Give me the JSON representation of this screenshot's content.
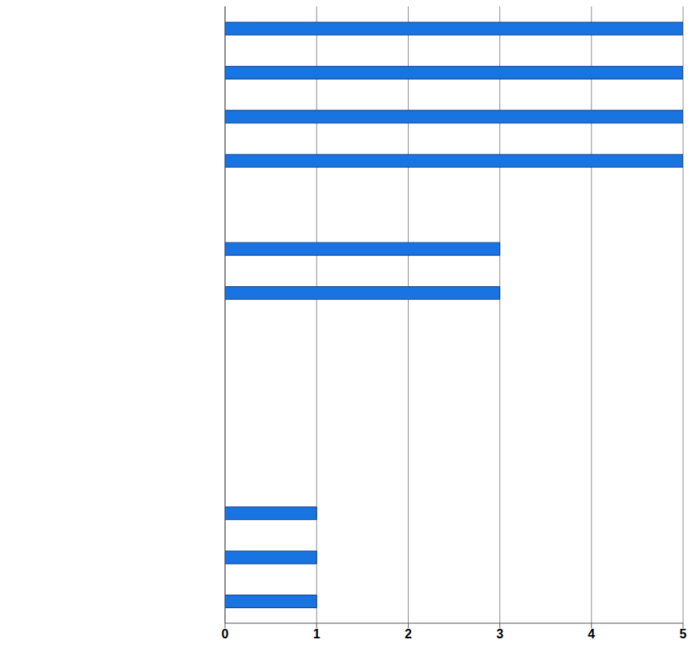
{
  "chart_data": {
    "type": "bar",
    "orientation": "horizontal",
    "categories": [
      null,
      null,
      null,
      null,
      null,
      null,
      null,
      null,
      null,
      null,
      null,
      null,
      null,
      null
    ],
    "values": [
      5,
      5,
      5,
      5,
      0,
      3,
      3,
      0,
      0,
      0,
      0,
      1,
      1,
      1
    ],
    "color": "#1874e0",
    "xlim": [
      0,
      5
    ],
    "xticks": [
      0,
      1,
      2,
      3,
      4,
      5
    ],
    "grid": true,
    "tick_labels": "x"
  }
}
